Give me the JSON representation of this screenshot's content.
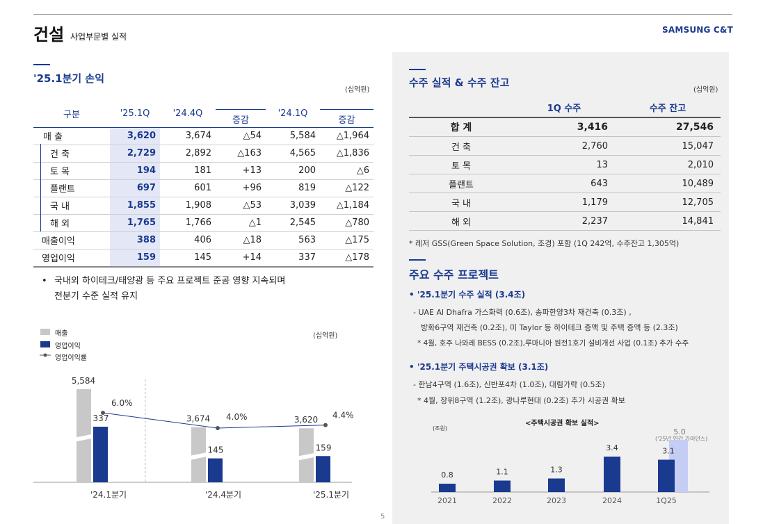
{
  "header": {
    "title": "건설",
    "subtitle": "사업부문별 실적",
    "brand": "SAMSUNG C&T"
  },
  "pl": {
    "title": "'25.1분기 손익",
    "unit": "(십억원)",
    "headers": [
      "구분",
      "'25.1Q",
      "'24.4Q",
      "증감",
      "'24.1Q",
      "증감"
    ],
    "rows": [
      [
        "매 출",
        "3,620",
        "3,674",
        "△54",
        "5,584",
        "△1,964"
      ],
      [
        "건 축",
        "2,729",
        "2,892",
        "△163",
        "4,565",
        "△1,836"
      ],
      [
        "토 목",
        "194",
        "181",
        "+13",
        "200",
        "△6"
      ],
      [
        "플랜트",
        "697",
        "601",
        "+96",
        "819",
        "△122"
      ],
      [
        "국 내",
        "1,855",
        "1,908",
        "△53",
        "3,039",
        "△1,184"
      ],
      [
        "해 외",
        "1,765",
        "1,766",
        "△1",
        "2,545",
        "△780"
      ],
      [
        "매출이익",
        "388",
        "406",
        "△18",
        "563",
        "△175"
      ],
      [
        "영업이익",
        "159",
        "145",
        "+14",
        "337",
        "△178"
      ]
    ],
    "note_line1": "국내외 하이테크/태양광 등 주요 프로젝트 준공 영향 지속되며",
    "note_line2": "전분기 수준 실적 유지"
  },
  "left_chart": {
    "legend": [
      "매출",
      "영업이익",
      "영업이익률"
    ],
    "unit": "(십억원)",
    "colors": {
      "sales": "#c8c8c8",
      "op": "#1a3a8f",
      "line": "#1a3a8f"
    }
  },
  "orders": {
    "title": "수주 실적 & 수주 잔고",
    "unit": "(십억원)",
    "headers": [
      "",
      "1Q 수주",
      "수주 잔고"
    ],
    "rows": [
      [
        "합 계",
        "3,416",
        "27,546"
      ],
      [
        "건 축",
        "2,760",
        "15,047"
      ],
      [
        "토 목",
        "13",
        "2,010"
      ],
      [
        "플랜트",
        "643",
        "10,489"
      ],
      [
        "국 내",
        "1,179",
        "12,705"
      ],
      [
        "해 외",
        "2,237",
        "14,841"
      ]
    ],
    "footnote": "* 레저 GSS(Green Space Solution, 조경) 포함 (1Q 242억, 수주잔고 1,305억)"
  },
  "projects": {
    "title": "주요 수주 프로젝트",
    "h1": "• '25.1분기 수주 실적 (3.4조)",
    "l1": "- UAE Al Dhafra 가스화력 (0.6조), 송파한양3차 재건축 (0.3조) ,",
    "l2": "방화6구역 재건축 (0.2조), 미 Taylor 등 하이테크 증액 및 주택 증액 등 (2.3조)",
    "l3": "* 4월, 호주 나와레 BESS (0.2조),루마니아 원전1호기 설비개선 사업 (0.1조) 추가 수주",
    "h2": "• '25.1분기 주택시공권 확보 (3.1조)",
    "l4": "- 한남4구역 (1.6조), 신반포4차 (1.0조), 대림가락 (0.5조)",
    "l5": "* 4월, 장위8구역 (1.2조), 광나루현대 (0.2조) 추가 시공권 확보"
  },
  "right_chart": {
    "title": "<주택시공권 확보 실적>",
    "unit": "(조원)",
    "guidance_label": "('25년 연간 가이던스)",
    "colors": {
      "bar": "#1a3a8f",
      "guidance": "#c5cdf5"
    }
  },
  "page_number": "5",
  "chart_data": [
    {
      "type": "bar",
      "categories": [
        "'24.1분기",
        "'24.4분기",
        "'25.1분기"
      ],
      "series": [
        {
          "name": "매출",
          "values": [
            5584,
            3674,
            3620
          ]
        },
        {
          "name": "영업이익",
          "values": [
            337,
            145,
            159
          ]
        },
        {
          "name": "영업이익률",
          "values": [
            6.0,
            4.0,
            4.4
          ],
          "labels": [
            "6.0%",
            "4.0%",
            "4.4%"
          ]
        }
      ],
      "sales_labels": [
        "5,584",
        "3,674",
        "3,620"
      ],
      "op_labels": [
        "337",
        "145",
        "159"
      ],
      "broken_axis": true
    },
    {
      "type": "bar",
      "categories": [
        "2021",
        "2022",
        "2023",
        "2024",
        "1Q25"
      ],
      "values": [
        0.8,
        1.1,
        1.3,
        3.4,
        3.1
      ],
      "labels": [
        "0.8",
        "1.1",
        "1.3",
        "3.4",
        "3.1"
      ],
      "guidance": {
        "value": 5.0,
        "label": "5.0"
      }
    }
  ]
}
